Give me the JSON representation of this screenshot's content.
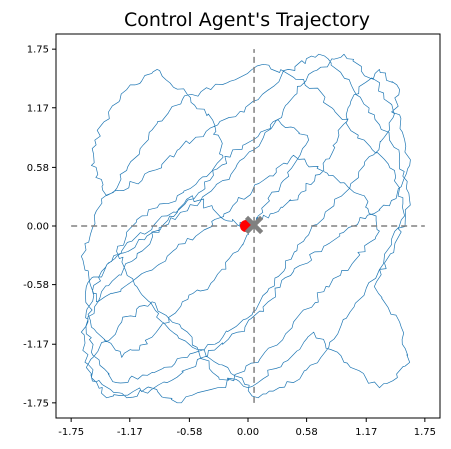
{
  "chart_data": {
    "type": "line",
    "title": "Control Agent's Trajectory",
    "xlabel": "",
    "ylabel": "",
    "xlim": [
      -1.9,
      1.9
    ],
    "ylim": [
      -1.9,
      1.9
    ],
    "grid": false,
    "x_ticks": [
      -1.75,
      -1.17,
      -0.58,
      0.0,
      0.58,
      1.17,
      1.75
    ],
    "x_tick_labels": [
      "-1.75",
      "-1.17",
      "-0.58",
      "0.00",
      "0.58",
      "1.17",
      "1.75"
    ],
    "y_ticks": [
      1.75,
      1.17,
      0.58,
      0.0,
      -0.58,
      -1.17,
      -1.75
    ],
    "y_tick_labels": [
      "1.75",
      "1.17",
      "0.58",
      "0.00",
      "-0.58",
      "-1.17",
      "-1.75"
    ],
    "reference_lines": {
      "horizontal": {
        "y": 0.0,
        "x_range": [
          -1.75,
          1.75
        ],
        "style": "dashed",
        "color": "#808080"
      },
      "vertical": {
        "x": 0.06,
        "y_range": [
          -1.75,
          1.75
        ],
        "style": "dashed",
        "color": "#808080"
      }
    },
    "trajectory": {
      "color": "#1f77b4",
      "description_points": [
        [
          0.0,
          0.0
        ],
        [
          0.22,
          0.12
        ],
        [
          0.5,
          0.3
        ],
        [
          0.75,
          0.55
        ],
        [
          0.9,
          0.9
        ],
        [
          1.05,
          1.3
        ],
        [
          1.3,
          1.55
        ],
        [
          1.5,
          1.35
        ],
        [
          1.4,
          0.95
        ],
        [
          1.15,
          0.6
        ],
        [
          0.85,
          0.2
        ],
        [
          0.55,
          -0.15
        ],
        [
          0.3,
          -0.5
        ],
        [
          0.05,
          -0.85
        ],
        [
          -0.25,
          -1.1
        ],
        [
          -0.6,
          -1.3
        ],
        [
          -0.95,
          -1.45
        ],
        [
          -1.3,
          -1.55
        ],
        [
          -1.55,
          -1.25
        ],
        [
          -1.6,
          -0.85
        ],
        [
          -1.45,
          -0.45
        ],
        [
          -1.15,
          -0.15
        ],
        [
          -0.8,
          0.1
        ],
        [
          -0.45,
          0.35
        ],
        [
          -0.25,
          0.7
        ],
        [
          -0.35,
          1.05
        ],
        [
          -0.6,
          1.3
        ],
        [
          -0.9,
          1.55
        ],
        [
          -1.2,
          1.35
        ],
        [
          -1.45,
          1.0
        ],
        [
          -1.55,
          0.6
        ],
        [
          -1.4,
          0.3
        ],
        [
          -1.05,
          0.45
        ],
        [
          -0.7,
          0.75
        ],
        [
          -0.3,
          1.0
        ],
        [
          0.1,
          1.25
        ],
        [
          0.4,
          1.55
        ],
        [
          0.7,
          1.7
        ],
        [
          1.0,
          1.45
        ],
        [
          1.25,
          1.1
        ],
        [
          1.5,
          0.7
        ],
        [
          1.6,
          0.25
        ],
        [
          1.45,
          -0.2
        ],
        [
          1.25,
          -0.6
        ],
        [
          1.5,
          -0.95
        ],
        [
          1.6,
          -1.35
        ],
        [
          1.3,
          -1.6
        ],
        [
          0.95,
          -1.35
        ],
        [
          0.65,
          -1.05
        ],
        [
          0.35,
          -1.35
        ],
        [
          0.0,
          -1.6
        ],
        [
          -0.35,
          -1.45
        ],
        [
          -0.6,
          -1.05
        ],
        [
          -0.95,
          -0.75
        ],
        [
          -1.25,
          -0.95
        ],
        [
          -1.6,
          -1.4
        ],
        [
          -1.4,
          -1.7
        ],
        [
          -1.0,
          -1.6
        ],
        [
          -0.7,
          -1.75
        ],
        [
          -0.3,
          -1.6
        ],
        [
          0.1,
          -1.35
        ],
        [
          0.45,
          -0.95
        ],
        [
          0.75,
          -0.65
        ],
        [
          1.05,
          -0.35
        ],
        [
          1.3,
          -0.05
        ],
        [
          1.15,
          0.3
        ],
        [
          0.8,
          0.5
        ],
        [
          0.45,
          0.7
        ],
        [
          0.15,
          0.45
        ],
        [
          -0.15,
          0.2
        ],
        [
          -0.45,
          -0.05
        ],
        [
          -0.8,
          -0.3
        ],
        [
          -1.15,
          -0.55
        ],
        [
          -1.5,
          -0.75
        ],
        [
          -1.65,
          -0.3
        ],
        [
          -1.5,
          0.15
        ],
        [
          -1.2,
          0.55
        ],
        [
          -0.95,
          0.95
        ],
        [
          -0.65,
          1.25
        ],
        [
          -0.25,
          1.4
        ],
        [
          0.15,
          1.6
        ],
        [
          0.55,
          1.45
        ],
        [
          0.85,
          1.15
        ],
        [
          1.15,
          0.85
        ],
        [
          1.45,
          0.55
        ],
        [
          1.55,
          0.1
        ],
        [
          1.35,
          -0.3
        ],
        [
          1.05,
          -0.8
        ],
        [
          0.8,
          -1.2
        ],
        [
          0.45,
          -1.55
        ],
        [
          0.1,
          -1.7
        ],
        [
          -0.2,
          -1.4
        ],
        [
          -0.55,
          -1.2
        ],
        [
          -0.85,
          -0.95
        ],
        [
          -1.1,
          -0.6
        ],
        [
          -1.3,
          -0.25
        ],
        [
          -1.05,
          0.1
        ],
        [
          -0.7,
          0.3
        ],
        [
          -0.35,
          0.55
        ],
        [
          -0.05,
          0.8
        ],
        [
          0.3,
          1.05
        ],
        [
          0.6,
          0.85
        ],
        [
          0.35,
          0.45
        ],
        [
          0.1,
          0.1
        ],
        [
          -0.1,
          -0.25
        ],
        [
          -0.35,
          -0.55
        ],
        [
          -0.65,
          -0.75
        ],
        [
          -0.95,
          -1.1
        ],
        [
          -1.25,
          -1.3
        ],
        [
          -1.55,
          -1.0
        ],
        [
          -1.6,
          -0.6
        ],
        [
          -1.35,
          -0.35
        ],
        [
          -1.0,
          -0.1
        ],
        [
          -0.6,
          0.15
        ],
        [
          -0.25,
          0.45
        ],
        [
          0.05,
          0.75
        ],
        [
          0.35,
          1.15
        ],
        [
          0.6,
          1.5
        ],
        [
          0.95,
          1.7
        ],
        [
          1.25,
          1.45
        ],
        [
          1.5,
          1.1
        ],
        [
          1.6,
          0.6
        ],
        [
          1.4,
          0.2
        ],
        [
          1.1,
          0.05
        ],
        [
          0.75,
          -0.2
        ],
        [
          0.45,
          -0.45
        ],
        [
          0.2,
          -0.75
        ],
        [
          -0.1,
          -1.05
        ],
        [
          -0.45,
          -1.3
        ],
        [
          -0.8,
          -1.55
        ],
        [
          -1.2,
          -1.7
        ],
        [
          -1.55,
          -1.5
        ],
        [
          -1.65,
          -1.05
        ],
        [
          -1.45,
          -0.65
        ],
        [
          -1.15,
          -0.35
        ],
        [
          -0.85,
          0.0
        ],
        [
          -0.55,
          0.3
        ],
        [
          -0.2,
          0.05
        ],
        [
          0.0,
          0.0
        ]
      ]
    },
    "start_marker": {
      "x": -0.02,
      "y": 0.0,
      "color": "#ff0000",
      "shape": "circle"
    },
    "end_marker": {
      "x": 0.06,
      "y": 0.01,
      "color": "#808080",
      "shape": "x"
    }
  }
}
